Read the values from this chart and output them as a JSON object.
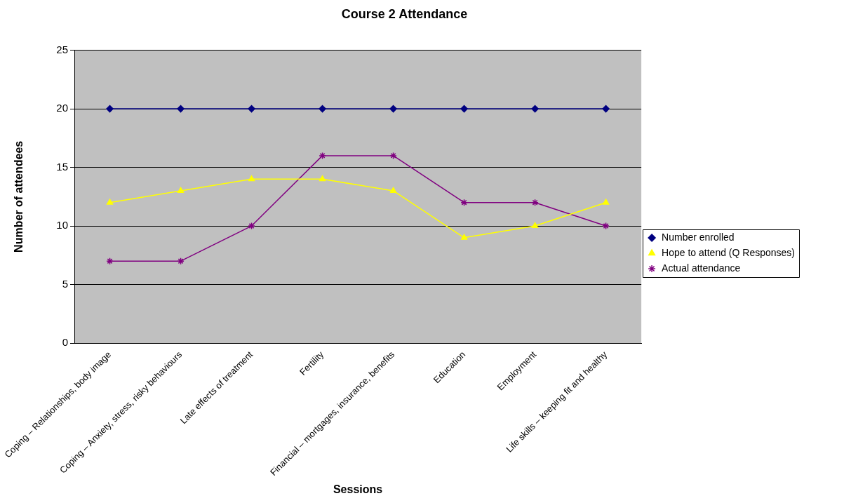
{
  "chart_data": {
    "type": "line",
    "title": "Course 2 Attendance",
    "xlabel": "Sessions",
    "ylabel": "Number of attendees",
    "categories": [
      "Coping – Relationships, body image",
      "Coping – Anxiety, stress, risky behaviours",
      "Late effects of treatment",
      "Fertility",
      "Financial – mortgages, insurance, benefits",
      "Education",
      "Employment",
      "Life skills – keeping fit and healthy"
    ],
    "series": [
      {
        "name": "Number enrolled",
        "color": "#000080",
        "marker": "diamond",
        "values": [
          20,
          20,
          20,
          20,
          20,
          20,
          20,
          20
        ]
      },
      {
        "name": "Hope to attend (Q Responses)",
        "color": "#ffff00",
        "marker": "triangle",
        "values": [
          12,
          13,
          14,
          14,
          13,
          9,
          10,
          12
        ]
      },
      {
        "name": "Actual attendance",
        "color": "#800080",
        "marker": "cross",
        "values": [
          7,
          7,
          10,
          16,
          16,
          12,
          12,
          10
        ]
      }
    ],
    "ylim": [
      0,
      25
    ],
    "yticks": [
      0,
      5,
      10,
      15,
      20,
      25
    ],
    "grid": "y",
    "legend": "right",
    "line_style": "solid"
  }
}
